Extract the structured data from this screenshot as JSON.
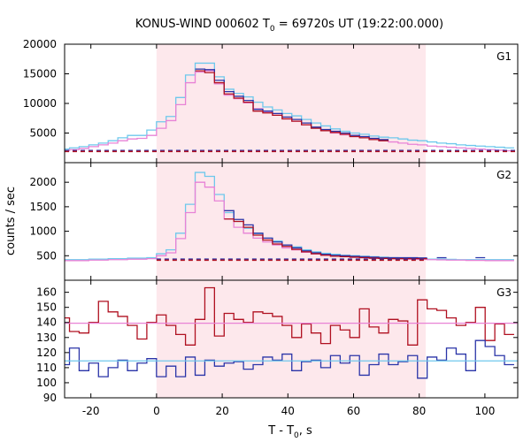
{
  "chart_data": {
    "type": "line",
    "title_main": "KONUS-WIND 000602 T",
    "title_sub": "0",
    "title_rest": " = 69720s UT (19:22:00.000)",
    "xlabel_main": "T - T",
    "xlabel_sub": "0",
    "xlabel_rest": ", s",
    "ylabel": "counts / sec",
    "xlim": [
      -28,
      110
    ],
    "xticks": [
      -20,
      0,
      20,
      40,
      60,
      80,
      100
    ],
    "highlight_interval": [
      0,
      82
    ],
    "panels": [
      {
        "label": "G1",
        "ylim": [
          0,
          20000
        ],
        "yticks": [
          0,
          5000,
          10000,
          15000,
          20000
        ],
        "background": 2000,
        "series": [
          {
            "color": "#6ec8ec",
            "step": 2.944,
            "x": [
              -27.984,
              -25.04,
              -22.096,
              -19.152,
              -16.208,
              -13.264,
              -10.32,
              -7.376,
              -4.432,
              -1.488,
              1.456,
              4.4,
              7.344,
              10.288,
              13.232,
              16.176,
              19.12,
              22.064,
              25.008,
              27.952,
              30.896,
              33.84,
              36.784,
              39.728,
              42.672,
              45.616,
              48.56,
              51.504,
              54.448,
              57.392,
              60.336,
              63.28,
              66.224,
              69.168,
              72.112,
              75.056,
              78.0,
              80.944,
              83.888,
              86.832,
              89.776,
              92.72,
              95.664,
              98.608,
              101.552,
              104.496,
              107.44
            ],
            "y": [
              2300,
              2500,
              2700,
              3000,
              3300,
              3700,
              4200,
              4600,
              4600,
              5500,
              6900,
              7800,
              11000,
              14800,
              16800,
              16800,
              14500,
              12400,
              11700,
              11100,
              10200,
              9400,
              8900,
              8300,
              7900,
              7300,
              6700,
              6200,
              5700,
              5300,
              5000,
              4800,
              4500,
              4300,
              4200,
              4000,
              3800,
              3700,
              3500,
              3300,
              3200,
              3000,
              2900,
              2800,
              2700,
              2600,
              2500
            ]
          },
          {
            "color": "#e882d6",
            "step": 2.944,
            "x": [
              -27.984,
              -25.04,
              -22.096,
              -19.152,
              -16.208,
              -13.264,
              -10.32,
              -7.376,
              -4.432,
              -1.488,
              1.456,
              4.4,
              7.344,
              10.288,
              13.232,
              16.176,
              19.12,
              22.064,
              25.008,
              27.952,
              30.896,
              33.84,
              36.784,
              39.728,
              42.672,
              45.616,
              48.56,
              51.504,
              54.448,
              57.392,
              60.336,
              63.28,
              66.224,
              69.168,
              72.112,
              75.056,
              78.0,
              80.944,
              83.888,
              86.832,
              89.776,
              92.72,
              95.664,
              98.608,
              101.552,
              104.496,
              107.44
            ],
            "y": [
              2000,
              2200,
              2400,
              2700,
              3000,
              3300,
              3700,
              4000,
              4100,
              4600,
              5800,
              7100,
              9800,
              13500,
              15300,
              15500,
              13300,
              11400,
              10800,
              10100,
              9100,
              8500,
              8000,
              7400,
              7000,
              6400,
              5900,
              5400,
              5000,
              4700,
              4400,
              4200,
              3900,
              3700,
              3500,
              3300,
              3100,
              3000,
              2800,
              2700,
              2600,
              2500,
              2400,
              2300,
              2200,
              2100,
              2000
            ]
          },
          {
            "color": "#2a34a8",
            "step": 2.944,
            "x": [
              13.232,
              16.176,
              19.12,
              22.064,
              25.008,
              27.952,
              30.896,
              33.84,
              36.784,
              39.728,
              42.672,
              45.616,
              48.56,
              51.504,
              54.448,
              57.392,
              60.336,
              63.28,
              66.224,
              69.168
            ],
            "y": [
              15800,
              15700,
              13900,
              12000,
              11200,
              10500,
              9000,
              8700,
              8300,
              7700,
              7300,
              6700,
              6000,
              5600,
              5300,
              5000,
              4600,
              4400,
              4100,
              3900
            ]
          },
          {
            "color": "#b01020",
            "step": 2.944,
            "x": [
              13.232,
              16.176,
              19.12,
              22.064,
              25.008,
              27.952,
              30.896,
              33.84,
              36.784,
              39.728,
              42.672,
              45.616,
              48.56,
              51.504,
              54.448,
              57.392,
              60.336,
              63.28,
              66.224,
              69.168
            ],
            "y": [
              15500,
              15200,
              13500,
              11600,
              10900,
              10200,
              8700,
              8400,
              8000,
              7400,
              7000,
              6400,
              5800,
              5400,
              5100,
              4800,
              4400,
              4200,
              3900,
              3700
            ]
          },
          {
            "color": "#2a34a8",
            "step": 0,
            "dashed": true,
            "x": [
              -28,
              110
            ],
            "y": [
              2050,
              2050
            ]
          },
          {
            "color": "#b01020",
            "step": 0,
            "dashed": true,
            "x": [
              -28,
              110
            ],
            "y": [
              1900,
              1900
            ]
          }
        ]
      },
      {
        "label": "G2",
        "ylim": [
          0,
          2400
        ],
        "yticks": [
          0,
          500,
          1000,
          1500,
          2000
        ],
        "background": 410,
        "series": [
          {
            "color": "#6ec8ec",
            "step": 2.944,
            "x": [
              -27.984,
              -25.04,
              -22.096,
              -19.152,
              -16.208,
              -13.264,
              -10.32,
              -7.376,
              -4.432,
              -1.488,
              1.456,
              4.4,
              7.344,
              10.288,
              13.232,
              16.176,
              19.12,
              22.064,
              25.008,
              27.952,
              30.896,
              33.84,
              36.784,
              39.728,
              42.672,
              45.616,
              48.56,
              51.504,
              54.448,
              57.392,
              60.336,
              63.28,
              66.224,
              69.168,
              72.112,
              75.056,
              78.0,
              80.944,
              83.888,
              86.832,
              89.776,
              92.72,
              95.664,
              98.608,
              101.552,
              104.496,
              107.44
            ],
            "y": [
              420,
              420,
              420,
              430,
              430,
              440,
              440,
              450,
              450,
              460,
              540,
              620,
              960,
              1550,
              2200,
              2120,
              1750,
              1380,
              1200,
              1060,
              950,
              860,
              800,
              720,
              680,
              620,
              580,
              550,
              530,
              510,
              500,
              490,
              480,
              470,
              460,
              455,
              450,
              440,
              430,
              430,
              425,
              420,
              420,
              420,
              420,
              420,
              420
            ]
          },
          {
            "color": "#e882d6",
            "step": 2.944,
            "x": [
              -27.984,
              -25.04,
              -22.096,
              -19.152,
              -16.208,
              -13.264,
              -10.32,
              -7.376,
              -4.432,
              -1.488,
              1.456,
              4.4,
              7.344,
              10.288,
              13.232,
              16.176,
              19.12,
              22.064,
              25.008,
              27.952,
              30.896,
              33.84,
              36.784,
              39.728,
              42.672,
              45.616,
              48.56,
              51.504,
              54.448,
              57.392,
              60.336,
              63.28,
              66.224,
              69.168,
              72.112,
              75.056,
              78.0,
              80.944,
              83.888,
              86.832,
              89.776,
              92.72,
              95.664,
              98.608,
              101.552,
              104.496,
              107.44
            ],
            "y": [
              400,
              400,
              400,
              410,
              410,
              420,
              420,
              430,
              430,
              440,
              500,
              560,
              850,
              1380,
              2000,
              1900,
              1620,
              1250,
              1080,
              960,
              860,
              780,
              720,
              660,
              620,
              570,
              540,
              510,
              490,
              480,
              470,
              460,
              450,
              445,
              440,
              435,
              430,
              425,
              420,
              415,
              410,
              410,
              405,
              405,
              400,
              400,
              400
            ]
          },
          {
            "color": "#2a34a8",
            "step": 2.944,
            "x": [
              22.064,
              25.008,
              27.952,
              30.896,
              33.84,
              36.784,
              39.728,
              42.672,
              45.616,
              48.56,
              51.504,
              54.448,
              57.392,
              60.336,
              63.28,
              66.224,
              69.168,
              72.112,
              75.056,
              78.0,
              80.944,
              86.832,
              98.608
            ],
            "y": [
              1420,
              1240,
              1130,
              960,
              860,
              780,
              720,
              660,
              600,
              560,
              530,
              510,
              500,
              490,
              480,
              470,
              460,
              460,
              460,
              460,
              455,
              460,
              460
            ]
          },
          {
            "color": "#b01020",
            "step": 2.944,
            "x": [
              22.064,
              25.008,
              27.952,
              30.896,
              33.84,
              36.784,
              39.728,
              42.672,
              45.616,
              48.56,
              51.504,
              54.448,
              57.392,
              60.336,
              63.28,
              66.224,
              69.168,
              72.112,
              75.056,
              78.0,
              80.944
            ],
            "y": [
              1250,
              1200,
              1080,
              920,
              820,
              740,
              690,
              630,
              580,
              540,
              510,
              490,
              480,
              470,
              460,
              450,
              445,
              440,
              440,
              440,
              440
            ]
          },
          {
            "color": "#2a34a8",
            "step": 0,
            "dashed": true,
            "x": [
              0,
              82
            ],
            "y": [
              430,
              430
            ]
          },
          {
            "color": "#b01020",
            "step": 0,
            "dashed": true,
            "x": [
              0,
              82
            ],
            "y": [
              410,
              410
            ]
          }
        ]
      },
      {
        "label": "G3",
        "ylim": [
          90,
          168
        ],
        "yticks": [
          90,
          100,
          110,
          120,
          130,
          140,
          150,
          160
        ],
        "series": [
          {
            "color": "#b01020",
            "step": 2.944,
            "x": [
              -27.984,
              -25.04,
              -22.096,
              -19.152,
              -16.208,
              -13.264,
              -10.32,
              -7.376,
              -4.432,
              -1.488,
              1.456,
              4.4,
              7.344,
              10.288,
              13.232,
              16.176,
              19.12,
              22.064,
              25.008,
              27.952,
              30.896,
              33.84,
              36.784,
              39.728,
              42.672,
              45.616,
              48.56,
              51.504,
              54.448,
              57.392,
              60.336,
              63.28,
              66.224,
              69.168,
              72.112,
              75.056,
              78.0,
              80.944,
              83.888,
              86.832,
              89.776,
              92.72,
              95.664,
              98.608,
              101.552,
              104.496,
              107.44
            ],
            "y": [
              143,
              134,
              133,
              140,
              154,
              147,
              144,
              138,
              129,
              140,
              145,
              138,
              132,
              125,
              142,
              163,
              131,
              146,
              142,
              140,
              147,
              146,
              144,
              138,
              130,
              139,
              133,
              126,
              138,
              135,
              130,
              149,
              137,
              133,
              142,
              141,
              125,
              155,
              149,
              148,
              143,
              138,
              140,
              150,
              128,
              139,
              132
            ]
          },
          {
            "color": "#2a34a8",
            "step": 2.944,
            "x": [
              -27.984,
              -25.04,
              -22.096,
              -19.152,
              -16.208,
              -13.264,
              -10.32,
              -7.376,
              -4.432,
              -1.488,
              1.456,
              4.4,
              7.344,
              10.288,
              13.232,
              16.176,
              19.12,
              22.064,
              25.008,
              27.952,
              30.896,
              33.84,
              36.784,
              39.728,
              42.672,
              45.616,
              48.56,
              51.504,
              54.448,
              57.392,
              60.336,
              63.28,
              66.224,
              69.168,
              72.112,
              75.056,
              78.0,
              80.944,
              83.888,
              86.832,
              89.776,
              92.72,
              95.664,
              98.608,
              101.552,
              104.496,
              107.44
            ],
            "y": [
              112,
              123,
              108,
              113,
              104,
              110,
              115,
              108,
              113,
              116,
              104,
              111,
              104,
              117,
              105,
              115,
              111,
              113,
              114,
              109,
              112,
              117,
              115,
              119,
              108,
              114,
              115,
              110,
              118,
              113,
              118,
              105,
              112,
              119,
              112,
              114,
              118,
              103,
              117,
              115,
              123,
              119,
              108,
              128,
              124,
              118,
              112
            ]
          },
          {
            "color": "#e882d6",
            "step": 0,
            "x": [
              -28,
              110
            ],
            "y": [
              139.5,
              139.5
            ]
          },
          {
            "color": "#6ec8ec",
            "step": 0,
            "x": [
              -28,
              110
            ],
            "y": [
              114.5,
              114.5
            ]
          }
        ]
      }
    ]
  }
}
